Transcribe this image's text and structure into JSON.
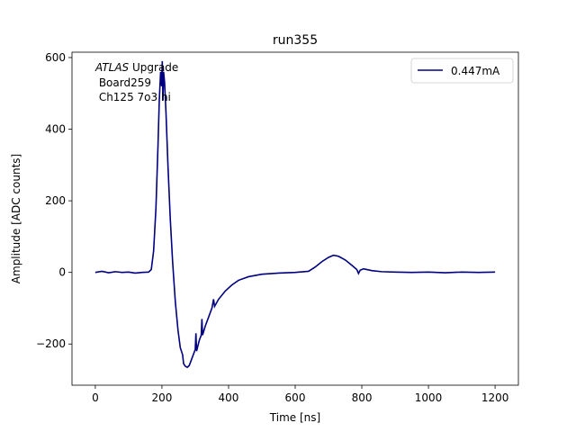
{
  "chart_data": {
    "type": "line",
    "title": "run355",
    "xlabel": "Time [ns]",
    "ylabel": "Amplitude [ADC counts]",
    "xlim": [
      -70,
      1270
    ],
    "ylim": [
      -315,
      615
    ],
    "xticks": [
      0,
      200,
      400,
      600,
      800,
      1000,
      1200
    ],
    "yticks": [
      -200,
      0,
      200,
      400,
      600
    ],
    "xtick_labels": [
      "0",
      "200",
      "400",
      "600",
      "800",
      "1000",
      "1200"
    ],
    "ytick_labels": [
      "−200",
      "0",
      "200",
      "400",
      "600"
    ],
    "grid": false,
    "legend": {
      "placement": "top-right"
    },
    "annotation": {
      "italic": "ATLAS",
      "rest": " Upgrade",
      "line2": " Board259",
      "line3": " Ch125 7o3 hi"
    },
    "series": [
      {
        "name": "0.447mA",
        "color": "#000080",
        "points": [
          [
            0,
            0
          ],
          [
            20,
            3
          ],
          [
            40,
            -1
          ],
          [
            60,
            2
          ],
          [
            80,
            0
          ],
          [
            100,
            1
          ],
          [
            120,
            -2
          ],
          [
            140,
            0
          ],
          [
            160,
            1
          ],
          [
            168,
            8
          ],
          [
            175,
            60
          ],
          [
            182,
            180
          ],
          [
            188,
            350
          ],
          [
            192,
            480
          ],
          [
            196,
            560
          ],
          [
            199,
            520
          ],
          [
            201,
            590
          ],
          [
            203,
            480
          ],
          [
            205,
            560
          ],
          [
            208,
            530
          ],
          [
            212,
            450
          ],
          [
            218,
            300
          ],
          [
            225,
            150
          ],
          [
            232,
            30
          ],
          [
            240,
            -80
          ],
          [
            248,
            -160
          ],
          [
            255,
            -210
          ],
          [
            262,
            -230
          ],
          [
            265,
            -255
          ],
          [
            270,
            -262
          ],
          [
            276,
            -265
          ],
          [
            282,
            -260
          ],
          [
            290,
            -240
          ],
          [
            300,
            -215
          ],
          [
            302,
            -170
          ],
          [
            304,
            -220
          ],
          [
            312,
            -190
          ],
          [
            318,
            -175
          ],
          [
            320,
            -130
          ],
          [
            322,
            -175
          ],
          [
            330,
            -150
          ],
          [
            340,
            -125
          ],
          [
            350,
            -100
          ],
          [
            355,
            -75
          ],
          [
            358,
            -95
          ],
          [
            370,
            -75
          ],
          [
            390,
            -52
          ],
          [
            410,
            -35
          ],
          [
            430,
            -22
          ],
          [
            460,
            -12
          ],
          [
            500,
            -5
          ],
          [
            550,
            -2
          ],
          [
            600,
            0
          ],
          [
            640,
            3
          ],
          [
            660,
            15
          ],
          [
            680,
            30
          ],
          [
            700,
            42
          ],
          [
            715,
            48
          ],
          [
            730,
            45
          ],
          [
            750,
            35
          ],
          [
            770,
            20
          ],
          [
            785,
            8
          ],
          [
            790,
            -3
          ],
          [
            795,
            6
          ],
          [
            805,
            10
          ],
          [
            830,
            5
          ],
          [
            860,
            2
          ],
          [
            900,
            1
          ],
          [
            950,
            0
          ],
          [
            1000,
            1
          ],
          [
            1050,
            -1
          ],
          [
            1100,
            1
          ],
          [
            1150,
            0
          ],
          [
            1200,
            1
          ]
        ]
      }
    ]
  }
}
